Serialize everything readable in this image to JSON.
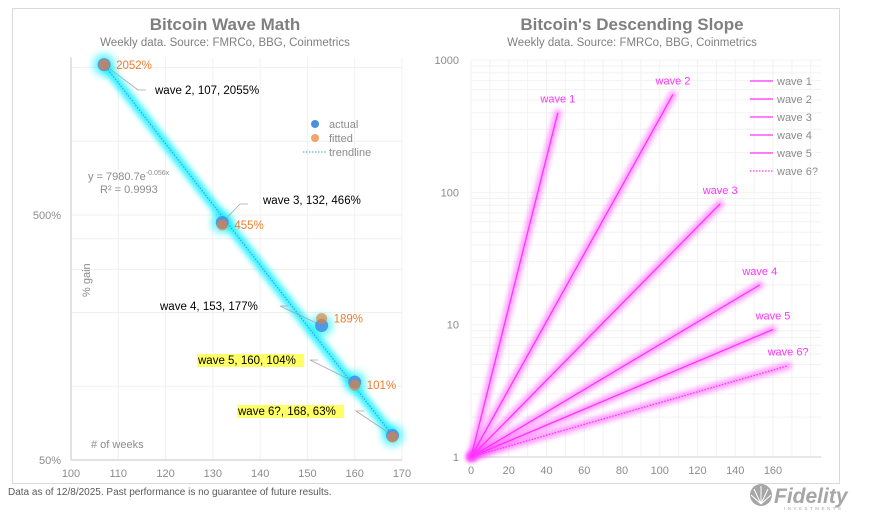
{
  "footer": "Data as of 12/8/2025. Past performance is no guarantee of future results.",
  "logo": {
    "text": "Fidelity",
    "subtext": "INVESTMENTS"
  },
  "chart_data": [
    {
      "type": "scatter",
      "title": "Bitcoin Wave Math",
      "subtitle": "Weekly data.  Source: FMRCo, BBG, Coinmetrics",
      "xlabel": "# of weeks",
      "ylabel": "% gain",
      "xlim": [
        100,
        170
      ],
      "xticks": [
        "100",
        "110",
        "120",
        "130",
        "140",
        "150",
        "160",
        "170"
      ],
      "ylim": [
        50,
        2200
      ],
      "yscale": "log",
      "yticks": [
        {
          "value": 50,
          "label": "50%"
        },
        {
          "value": 500,
          "label": "500%"
        }
      ],
      "grid": true,
      "legend": {
        "placement": "top-right",
        "entries": [
          "actual",
          "fitted",
          "trendline"
        ]
      },
      "equation": {
        "line1": "y = 7980.7e",
        "exponent": "-0.056x",
        "line2": "R² = 0.9993"
      },
      "colors": {
        "actual": "#4a90e2",
        "fitted": "#ed7d31",
        "trendline": "#4a90e2",
        "glow": "#00f0ff",
        "highlight": "#ffff66"
      },
      "points": [
        {
          "wave": "wave 2",
          "x": 107,
          "actual": 2055,
          "fitted": 2052,
          "label": "wave 2, 107, 2055%",
          "fitted_label": "2052%",
          "highlight": false
        },
        {
          "wave": "wave 3",
          "x": 132,
          "actual": 466,
          "fitted": 455,
          "label": "wave 3, 132, 466%",
          "fitted_label": "455%",
          "highlight": false
        },
        {
          "wave": "wave 4",
          "x": 153,
          "actual": 177,
          "fitted": 189,
          "label": "wave 4, 153, 177%",
          "fitted_label": "189%",
          "highlight": false
        },
        {
          "wave": "wave 5",
          "x": 160,
          "actual": 104,
          "fitted": 101,
          "label": "wave 5, 160, 104%",
          "fitted_label": "101%",
          "highlight": true
        },
        {
          "wave": "wave 6?",
          "x": 168,
          "actual": 63,
          "fitted": 62,
          "label": "wave 6?, 168, 63%",
          "fitted_label": "",
          "highlight": true
        }
      ]
    },
    {
      "type": "line",
      "title": "Bitcoin's Descending Slope",
      "subtitle": "Weekly data.  Source: FMRCo, BBG, Coinmetrics",
      "xlim": [
        0,
        185
      ],
      "xticks": [
        "0",
        "20",
        "40",
        "60",
        "80",
        "100",
        "120",
        "140",
        "160"
      ],
      "ylim": [
        1,
        1000
      ],
      "yscale": "log",
      "yticks": [
        "1",
        "10",
        "100",
        "1000"
      ],
      "grid": true,
      "legend": {
        "placement": "top-right"
      },
      "color": "#ff33ff",
      "series": [
        {
          "name": "wave 1",
          "start": [
            0,
            1
          ],
          "end": [
            46,
            400
          ],
          "dotted": false
        },
        {
          "name": "wave 2",
          "start": [
            0,
            1
          ],
          "end": [
            107,
            550
          ],
          "dotted": false
        },
        {
          "name": "wave 3",
          "start": [
            0,
            1
          ],
          "end": [
            132,
            82
          ],
          "dotted": false
        },
        {
          "name": "wave 4",
          "start": [
            0,
            1
          ],
          "end": [
            153,
            20
          ],
          "dotted": false
        },
        {
          "name": "wave 5",
          "start": [
            0,
            1
          ],
          "end": [
            160,
            9.2
          ],
          "dotted": false
        },
        {
          "name": "wave 6?",
          "start": [
            0,
            1
          ],
          "end": [
            168,
            4.9
          ],
          "dotted": true
        }
      ]
    }
  ]
}
